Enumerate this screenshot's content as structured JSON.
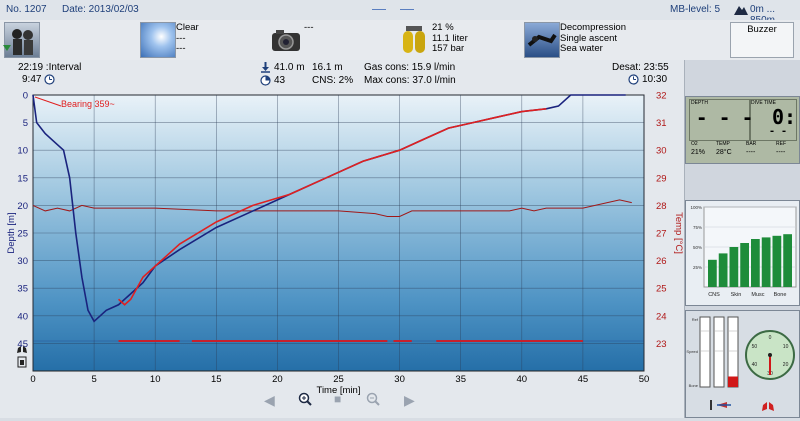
{
  "header": {
    "dive_no": "No. 1207",
    "date": "Date: 2013/02/03",
    "mb_level": "MB-level: 5",
    "altitude": "0m ... 850m"
  },
  "info": {
    "weather": [
      "Clear",
      "---",
      "---"
    ],
    "camera": "---",
    "tank": [
      "21 %",
      "11.1 liter",
      "157 bar"
    ],
    "mode": [
      "Decompression",
      "Single ascent",
      "Sea water"
    ],
    "buzzer_label": "Buzzer"
  },
  "stats": {
    "interval": "22:19 :Interval",
    "start_time": "9:47",
    "max_depth": "41.0 m",
    "avg_depth": "16.1 m",
    "duration": "43",
    "cns": "CNS:  2%",
    "gas_cons": "Gas cons: 15.9 l/min",
    "max_cons": "Max cons: 37.0 l/min",
    "desat": "Desat: 23:55",
    "end_time": "10:30"
  },
  "chart_data": {
    "type": "line",
    "xlabel": "Time [min]",
    "ylabel_left": "Depth [m]",
    "ylabel_right": "Temp [°C]",
    "x_ticks": [
      0,
      5,
      10,
      15,
      20,
      25,
      30,
      35,
      40,
      45,
      50
    ],
    "depth_ticks": [
      0,
      5,
      10,
      15,
      20,
      25,
      30,
      35,
      40,
      45
    ],
    "temp_ticks": [
      32,
      31,
      30,
      29,
      28,
      27,
      26,
      25,
      24,
      23
    ],
    "xlim": [
      0,
      50
    ],
    "depth_lim": [
      0,
      50
    ],
    "temp_lim": [
      32,
      22
    ],
    "annotation": "Bearing 359~",
    "series": [
      {
        "color": "#1a237e",
        "x": [
          0,
          0.3,
          1,
          2,
          2.5,
          3,
          3.5,
          4,
          4.5,
          5,
          5.5,
          6,
          7,
          8,
          9,
          10,
          12,
          15,
          18,
          21,
          24,
          27,
          30,
          32,
          34,
          36,
          38,
          40,
          42,
          43,
          44,
          45,
          48.5
        ],
        "depth": [
          0,
          5,
          7,
          9,
          10,
          15,
          25,
          33,
          39,
          41,
          40,
          39,
          38,
          36,
          34,
          31,
          28,
          24,
          21,
          18,
          15,
          12,
          10,
          8,
          6,
          5,
          4,
          3,
          2.5,
          2,
          0,
          0,
          0
        ]
      },
      {
        "color": "#e02020",
        "x": [
          7,
          7.5,
          8,
          9,
          10,
          12,
          15,
          18,
          21,
          24,
          27,
          30,
          32,
          34,
          36,
          38,
          40,
          42
        ],
        "depth": [
          37,
          38,
          37,
          33,
          31,
          27,
          23,
          20,
          18,
          15,
          12,
          10,
          8,
          6,
          5,
          4,
          3,
          2.5
        ]
      }
    ],
    "temperature": {
      "color": "#a01818",
      "x": [
        0,
        1,
        2,
        3,
        4,
        5,
        10,
        15,
        20,
        25,
        28,
        29,
        30,
        31,
        35,
        39,
        40,
        41,
        42,
        45,
        47,
        48,
        49
      ],
      "temp": [
        28,
        27.8,
        27.9,
        27.8,
        28,
        27.9,
        27.9,
        27.8,
        27.8,
        27.8,
        27.7,
        27.6,
        27.6,
        27.8,
        27.8,
        27.8,
        27.9,
        27.8,
        27.9,
        27.9,
        28.1,
        28.2,
        28.1
      ]
    },
    "ascent_markers": {
      "color": "#e02020",
      "x_ranges": [
        [
          7,
          12
        ],
        [
          13,
          29
        ],
        [
          29.5,
          31
        ],
        [
          33,
          45
        ]
      ]
    }
  },
  "right": {
    "computer": {
      "depth_label": "DEPTH",
      "dive_time_label": "DIVE TIME",
      "o2_label": "O2",
      "temp_label": "TEMP",
      "bar_label": "BAR",
      "ref_label": "REF",
      "o2_value": "21%",
      "temp_value": "28°C",
      "bar_value": "----",
      "ref_value": "----",
      "depth_value": "- - -",
      "time_value": "0:",
      "sub_value": "- -"
    },
    "tissue": {
      "labels": [
        "CNS",
        "Skin",
        "Musc",
        "Bone"
      ],
      "y_ticks": [
        "100%",
        "75%",
        "50%",
        "25%"
      ],
      "values": [
        0.34,
        0.42,
        0.5,
        0.55,
        0.6,
        0.62,
        0.64,
        0.66
      ]
    },
    "gauges": {
      "left_bar_labels": [
        "Ref",
        "Speed",
        "Bone"
      ],
      "compass_ticks": [
        "0",
        "10",
        "20",
        "30",
        "40",
        "50"
      ],
      "red_bar_fill": 0.15
    }
  }
}
